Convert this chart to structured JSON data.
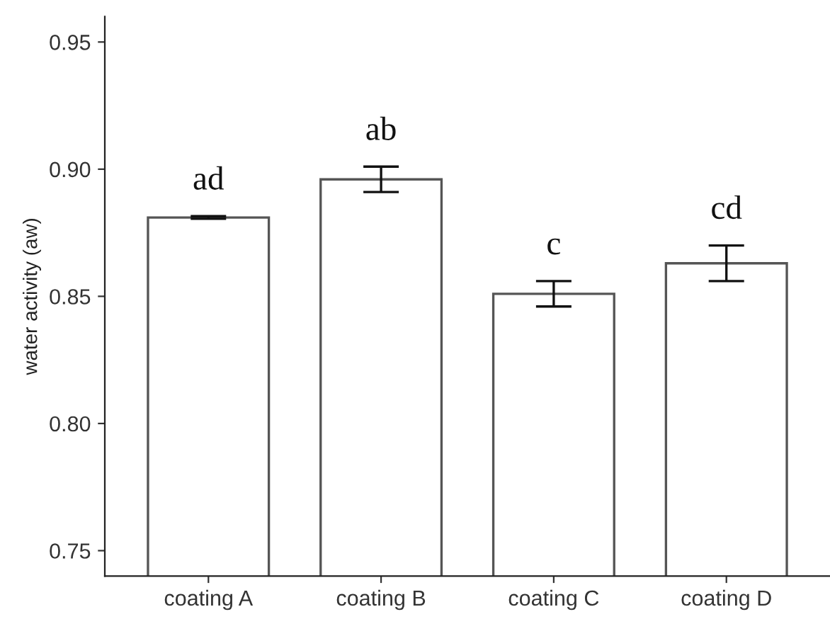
{
  "chart_data": {
    "type": "bar",
    "ylabel": "water activity (aw)",
    "categories": [
      "coating A",
      "coating B",
      "coating C",
      "coating D"
    ],
    "values": [
      0.881,
      0.896,
      0.851,
      0.863
    ],
    "errors": [
      0.0005,
      0.005,
      0.005,
      0.007
    ],
    "color": "#ffffff",
    "ylim": [
      0.74,
      0.96
    ],
    "yticks": [
      0.75,
      {
        "value": 0.8,
        "label": "0.80"
      },
      0.85,
      {
        "value": 0.9,
        "label": "0.90"
      },
      0.95
    ],
    "grid": false,
    "annotations": [
      "ad",
      "ab",
      "c",
      "cd"
    ]
  }
}
